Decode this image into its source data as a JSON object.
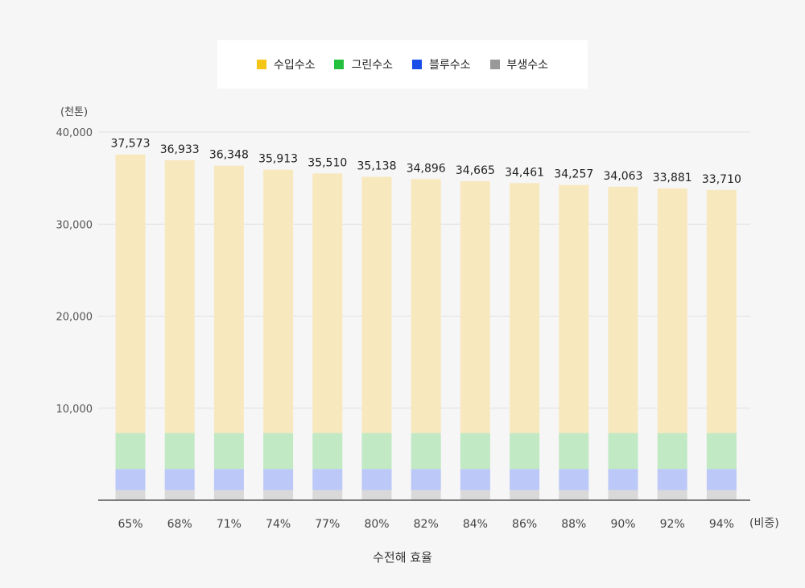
{
  "chart_data": {
    "type": "bar",
    "stacked": true,
    "y_unit": "(천톤)",
    "x_unit": "(비중)",
    "xlabel": "수전해 효율",
    "ylim": [
      0,
      40000
    ],
    "yticks": [
      "10,000",
      "20,000",
      "30,000",
      "40,000"
    ],
    "ytick_values": [
      10000,
      20000,
      30000,
      40000
    ],
    "categories": [
      "65%",
      "68%",
      "71%",
      "74%",
      "77%",
      "80%",
      "82%",
      "84%",
      "86%",
      "88%",
      "90%",
      "92%",
      "94%"
    ],
    "totals": [
      37573,
      36933,
      36348,
      35913,
      35510,
      35138,
      34896,
      34665,
      34461,
      34257,
      34063,
      33881,
      33710
    ],
    "total_labels": [
      "37,573",
      "36,933",
      "36,348",
      "35,913",
      "35,510",
      "35,138",
      "34,896",
      "34,665",
      "34,461",
      "34,257",
      "34,063",
      "33,881",
      "33,710"
    ],
    "legend": [
      {
        "name": "수입수소",
        "color": "#f5c518"
      },
      {
        "name": "그린수소",
        "color": "#22c03c"
      },
      {
        "name": "블루수소",
        "color": "#1a4ee8"
      },
      {
        "name": "부생수소",
        "color": "#999999"
      }
    ],
    "series": [
      {
        "name": "부생수소",
        "color": "#d9d9d9",
        "values": [
          1100,
          1100,
          1100,
          1100,
          1100,
          1100,
          1100,
          1100,
          1100,
          1100,
          1100,
          1100,
          1100
        ]
      },
      {
        "name": "블루수소",
        "color": "#bcc8f7",
        "values": [
          2300,
          2300,
          2300,
          2300,
          2300,
          2300,
          2300,
          2300,
          2300,
          2300,
          2300,
          2300,
          2300
        ]
      },
      {
        "name": "그린수소",
        "color": "#c1e9c4",
        "values": [
          3900,
          3900,
          3900,
          3900,
          3900,
          3900,
          3900,
          3900,
          3900,
          3900,
          3900,
          3900,
          3900
        ]
      },
      {
        "name": "수입수소",
        "color": "#f8e8bd",
        "values": [
          30273,
          29633,
          29048,
          28613,
          28210,
          27838,
          27596,
          27365,
          27161,
          26957,
          26763,
          26581,
          26410
        ]
      }
    ],
    "grid": true
  }
}
